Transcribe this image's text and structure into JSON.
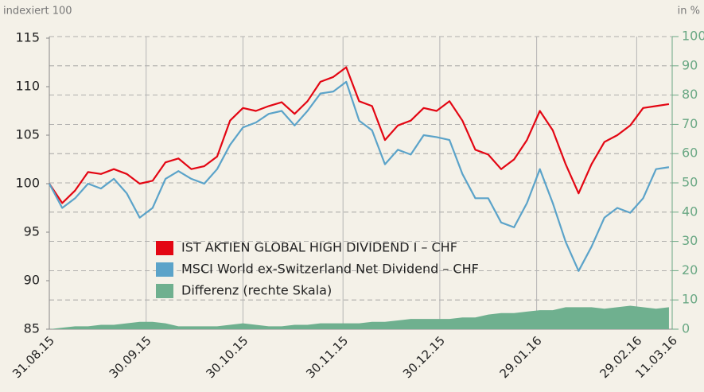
{
  "chart_data": {
    "type": "line",
    "ylabel": "indexiert 100",
    "y2label": "in %",
    "x": [
      0,
      4,
      8,
      12,
      16,
      20,
      24,
      28,
      32,
      36,
      40,
      44,
      48,
      52,
      56,
      60,
      64,
      68,
      72,
      76,
      80,
      84,
      88,
      92,
      96,
      100,
      104,
      108,
      112,
      116,
      120,
      124,
      128,
      132,
      136,
      140,
      144,
      148,
      152,
      156,
      160,
      164,
      168,
      172,
      176,
      180,
      184,
      188,
      192
    ],
    "xlim": [
      0,
      193
    ],
    "xticks": [
      {
        "value": 0,
        "label": "31.08.15"
      },
      {
        "value": 30,
        "label": "30.09.15"
      },
      {
        "value": 60,
        "label": "30.10.15"
      },
      {
        "value": 91,
        "label": "30.11.15"
      },
      {
        "value": 121,
        "label": "30.12.15"
      },
      {
        "value": 151,
        "label": "29.01.16"
      },
      {
        "value": 182,
        "label": "29.02.16"
      },
      {
        "value": 193,
        "label": "11.03.16"
      }
    ],
    "ylim": [
      85,
      115
    ],
    "yticks": [
      85,
      90,
      95,
      100,
      105,
      110,
      115
    ],
    "y2lim": [
      0,
      100
    ],
    "y2ticks": [
      0,
      10,
      20,
      30,
      40,
      50,
      60,
      70,
      80,
      90,
      100
    ],
    "grid": true,
    "series": [
      {
        "name": "IST AKTIEN GLOBAL HIGH DIVIDEND I – CHF",
        "color": "#e30613",
        "type": "line",
        "values": [
          100,
          98,
          99.3,
          101.2,
          101,
          101.5,
          101,
          100,
          100.3,
          102.2,
          102.6,
          101.5,
          101.8,
          102.8,
          106.5,
          107.8,
          107.5,
          108,
          108.4,
          107.2,
          108.5,
          110.5,
          111,
          112,
          108.5,
          108,
          104.5,
          106,
          106.5,
          107.8,
          107.5,
          108.5,
          106.5,
          103.5,
          103,
          101.5,
          102.5,
          104.5,
          107.5,
          105.5,
          102,
          99,
          102,
          104.3,
          105,
          106,
          107.8,
          108,
          108.2
        ]
      },
      {
        "name": "MSCI World ex-Switzerland Net Dividend – CHF",
        "color": "#5ba3c9",
        "type": "line",
        "values": [
          100,
          97.5,
          98.5,
          100,
          99.5,
          100.5,
          99,
          96.5,
          97.5,
          100.5,
          101.3,
          100.5,
          100,
          101.5,
          104,
          105.8,
          106.3,
          107.2,
          107.5,
          106,
          107.5,
          109.3,
          109.5,
          110.5,
          106.5,
          105.5,
          102,
          103.5,
          103,
          105,
          104.8,
          104.5,
          101,
          98.5,
          98.5,
          96,
          95.5,
          98,
          101.5,
          98,
          94,
          91,
          93.5,
          96.5,
          97.5,
          97,
          98.5,
          101.5,
          101.7
        ]
      },
      {
        "name": "Differenz (rechte Skala)",
        "color": "#6fb08f",
        "type": "area",
        "axis": "y2",
        "values": [
          0,
          0.5,
          1,
          1,
          1.5,
          1.5,
          2,
          2.5,
          2.5,
          2,
          1,
          1,
          1,
          1,
          1.5,
          2,
          1.5,
          1,
          1,
          1.5,
          1.5,
          2,
          2,
          2,
          2,
          2.5,
          2.5,
          3,
          3.5,
          3.5,
          3.5,
          3.5,
          4,
          4,
          5,
          5.5,
          5.5,
          6,
          6.5,
          6.5,
          7.5,
          7.5,
          7.5,
          7,
          7.5,
          8,
          7.5,
          7,
          7.5
        ]
      }
    ]
  }
}
